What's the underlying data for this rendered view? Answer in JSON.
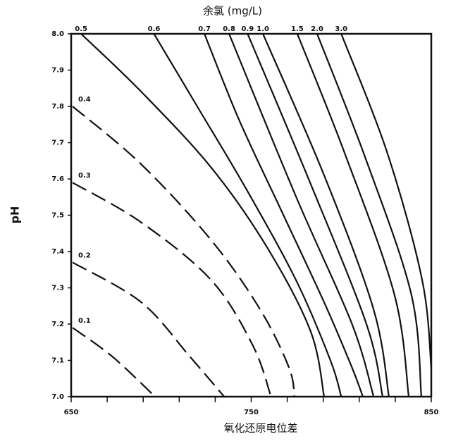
{
  "chart_data": {
    "type": "line",
    "title": "余氯 (mg/L)",
    "x_label": "氧化还原电位差",
    "y_label": "pH",
    "xlim": [
      650,
      850
    ],
    "ylim": [
      7.0,
      8.0
    ],
    "xticks": [
      650,
      750,
      850
    ],
    "xminor_ticks": [
      670,
      690,
      710,
      730,
      770,
      790,
      810,
      830
    ],
    "yticks": [
      {
        "value": 7.0,
        "label": "7.0"
      },
      7.1,
      7.2,
      7.3,
      7.4,
      7.5,
      7.6,
      7.7,
      7.8,
      7.9,
      {
        "value": 8.0,
        "label": "8.0"
      }
    ],
    "color": "#111111",
    "series": [
      {
        "name": "0.1",
        "dashed": true,
        "x": [
          650.8,
          673,
          696.6
        ],
        "values": [
          7.19,
          7.11,
          7.0
        ]
      },
      {
        "name": "0.2",
        "dashed": true,
        "x": [
          650.8,
          689,
          716,
          735
        ],
        "values": [
          7.37,
          7.26,
          7.11,
          7.0
        ]
      },
      {
        "name": "0.3",
        "dashed": true,
        "x": [
          650.8,
          689,
          728,
          751,
          761
        ],
        "values": [
          7.59,
          7.48,
          7.32,
          7.14,
          7.0
        ]
      },
      {
        "name": "0.4",
        "dashed": true,
        "x": [
          650.8,
          689,
          728,
          755,
          771,
          774
        ],
        "values": [
          7.8,
          7.64,
          7.43,
          7.24,
          7.08,
          7.0
        ]
      },
      {
        "name": "0.5",
        "x": [
          655.5,
          689,
          728,
          759,
          783,
          790.5
        ],
        "values": [
          8.0,
          7.84,
          7.63,
          7.41,
          7.18,
          7.0
        ]
      },
      {
        "name": "0.6",
        "x": [
          696,
          720,
          747.5,
          775,
          794,
          800
        ],
        "values": [
          8.0,
          7.8,
          7.57,
          7.32,
          7.1,
          7.0
        ]
      },
      {
        "name": "0.7",
        "x": [
          724,
          743.5,
          767,
          790.5,
          806,
          812
        ],
        "values": [
          8.0,
          7.76,
          7.51,
          7.26,
          7.08,
          7.0
        ]
      },
      {
        "name": "0.8",
        "x": [
          737.7,
          775,
          806,
          818
        ],
        "values": [
          8.0,
          7.55,
          7.2,
          7.0
        ]
      },
      {
        "name": "0.9",
        "x": [
          748,
          782.7,
          814,
          823
        ],
        "values": [
          8.0,
          7.59,
          7.2,
          7.0
        ]
      },
      {
        "name": "1.0",
        "x": [
          756.5,
          790.5,
          818,
          826.5
        ],
        "values": [
          8.0,
          7.61,
          7.24,
          7.0
        ]
      },
      {
        "name": "1.5",
        "x": [
          775.6,
          802,
          829.6,
          837.5
        ],
        "values": [
          8.0,
          7.67,
          7.28,
          7.0
        ]
      },
      {
        "name": "2.0",
        "x": [
          786.6,
          814,
          839,
          844.5
        ],
        "values": [
          8.0,
          7.65,
          7.28,
          7.0
        ]
      },
      {
        "name": "3.0",
        "x": [
          800,
          825.7,
          845,
          850
        ],
        "values": [
          8.0,
          7.67,
          7.32,
          7.08
        ]
      }
    ]
  }
}
